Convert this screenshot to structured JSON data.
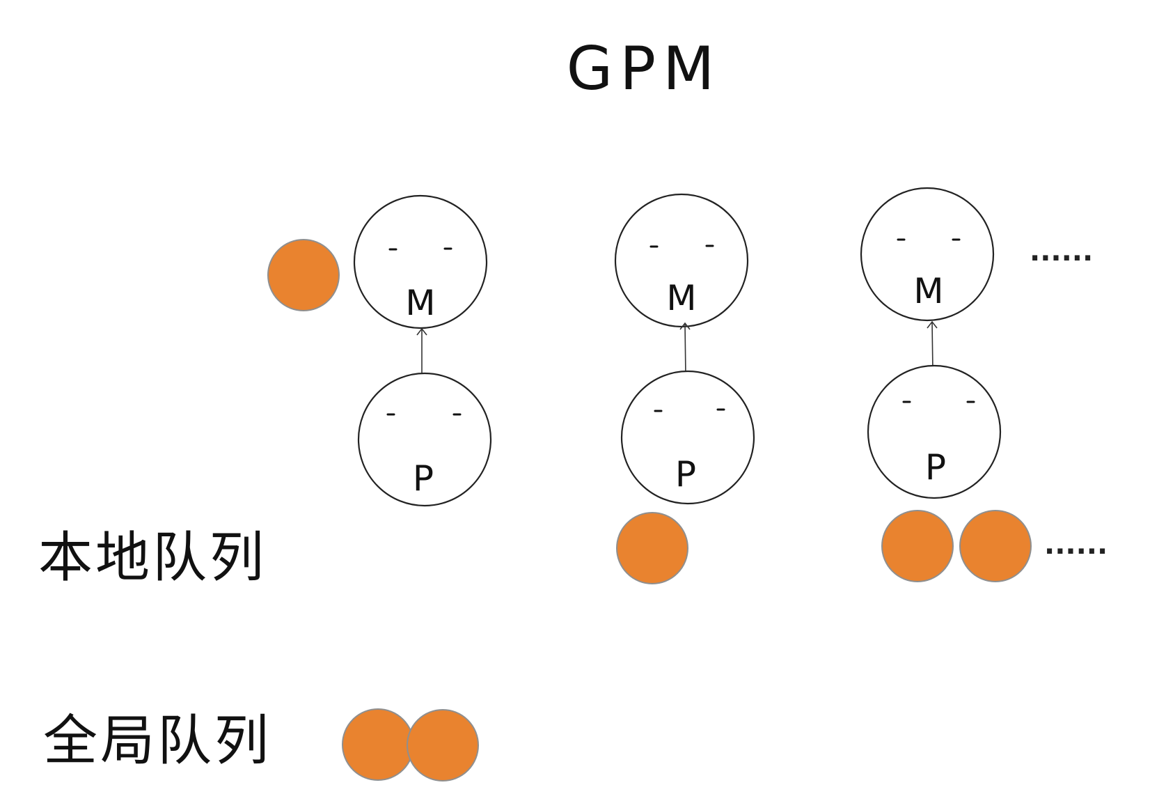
{
  "title": "GPM",
  "labels": {
    "local_queue": "本地队列",
    "global_queue": "全局队列"
  },
  "machine_label": "M",
  "processor_label": "P",
  "ellipsis": "......",
  "colors": {
    "goroutine": "#E9832F",
    "stroke": "#222222",
    "background": "#ffffff"
  },
  "columns": [
    {
      "id": 1,
      "running_goroutine": true,
      "local_queue_count": 0,
      "local_queue_more": false
    },
    {
      "id": 2,
      "running_goroutine": false,
      "local_queue_count": 1,
      "local_queue_more": false
    },
    {
      "id": 3,
      "running_goroutine": false,
      "local_queue_count": 2,
      "local_queue_more": true
    }
  ],
  "more_machines": true,
  "global_queue_count": 2
}
